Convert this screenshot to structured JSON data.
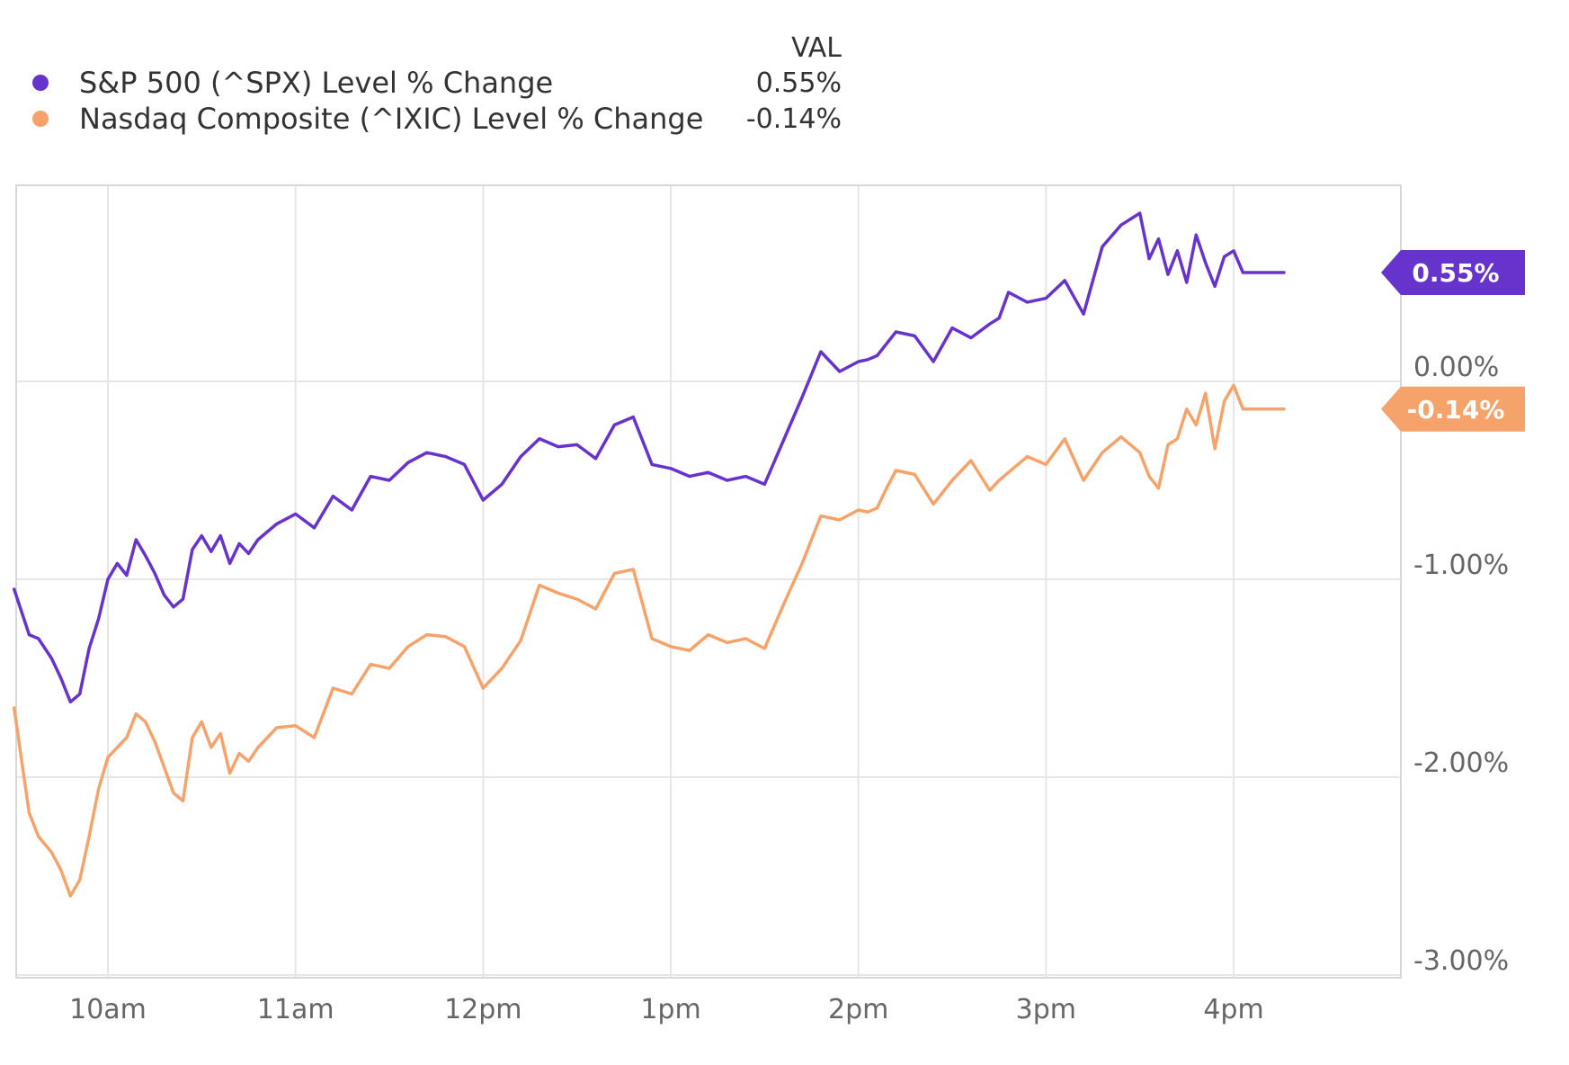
{
  "legend": {
    "header": "VAL",
    "items": [
      {
        "name": "S&P 500 (^SPX) Level % Change",
        "value": "0.55%",
        "color": "#6633cc"
      },
      {
        "name": "Nasdaq Composite (^IXIC) Level % Change",
        "value": "-0.14%",
        "color": "#f5a36b"
      }
    ]
  },
  "chart_data": {
    "type": "line",
    "x_unit": "time of day",
    "x_ticks": [
      {
        "label": "10am",
        "hour": 10
      },
      {
        "label": "11am",
        "hour": 11
      },
      {
        "label": "12pm",
        "hour": 12
      },
      {
        "label": "1pm",
        "hour": 13
      },
      {
        "label": "2pm",
        "hour": 14
      },
      {
        "label": "3pm",
        "hour": 15
      },
      {
        "label": "4pm",
        "hour": 16
      }
    ],
    "xlim": [
      9.5,
      16.9
    ],
    "ylim": [
      -3.0,
      1.0
    ],
    "y_ticks": [
      {
        "value": 0,
        "label": "0.00%"
      },
      {
        "value": -1,
        "label": "-1.00%"
      },
      {
        "value": -2,
        "label": "-2.00%"
      },
      {
        "value": -3,
        "label": "-3.00%"
      }
    ],
    "grid": true,
    "legend_position": "top-left",
    "series": [
      {
        "name": "S&P 500 (^SPX) Level % Change",
        "color": "#6633cc",
        "end_label": "0.55%",
        "end_value": 0.55,
        "hour": [
          9.5,
          9.58,
          9.63,
          9.7,
          9.75,
          9.8,
          9.85,
          9.9,
          9.95,
          10.0,
          10.05,
          10.1,
          10.15,
          10.2,
          10.25,
          10.3,
          10.35,
          10.4,
          10.45,
          10.5,
          10.55,
          10.6,
          10.65,
          10.7,
          10.75,
          10.8,
          10.9,
          11.0,
          11.1,
          11.2,
          11.3,
          11.4,
          11.5,
          11.6,
          11.7,
          11.8,
          11.9,
          12.0,
          12.1,
          12.2,
          12.3,
          12.4,
          12.5,
          12.6,
          12.7,
          12.8,
          12.9,
          13.0,
          13.1,
          13.2,
          13.3,
          13.4,
          13.5,
          13.6,
          13.7,
          13.8,
          13.9,
          14.0,
          14.05,
          14.1,
          14.15,
          14.2,
          14.3,
          14.4,
          14.5,
          14.6,
          14.7,
          14.75,
          14.8,
          14.9,
          15.0,
          15.1,
          15.2,
          15.3,
          15.4,
          15.5,
          15.55,
          15.6,
          15.65,
          15.7,
          15.75,
          15.8,
          15.85,
          15.9,
          15.95,
          16.0,
          16.05,
          16.9
        ],
        "values": [
          -1.05,
          -1.28,
          -1.3,
          -1.4,
          -1.5,
          -1.62,
          -1.58,
          -1.35,
          -1.2,
          -1.0,
          -0.92,
          -0.98,
          -0.8,
          -0.88,
          -0.97,
          -1.08,
          -1.14,
          -1.1,
          -0.85,
          -0.78,
          -0.86,
          -0.78,
          -0.92,
          -0.82,
          -0.87,
          -0.8,
          -0.72,
          -0.67,
          -0.74,
          -0.58,
          -0.65,
          -0.48,
          -0.5,
          -0.41,
          -0.36,
          -0.38,
          -0.42,
          -0.6,
          -0.52,
          -0.38,
          -0.29,
          -0.33,
          -0.32,
          -0.39,
          -0.22,
          -0.18,
          -0.42,
          -0.44,
          -0.48,
          -0.46,
          -0.5,
          -0.48,
          -0.52,
          -0.3,
          -0.08,
          0.15,
          0.05,
          0.1,
          0.11,
          0.13,
          0.19,
          0.25,
          0.23,
          0.1,
          0.27,
          0.22,
          0.29,
          0.32,
          0.45,
          0.4,
          0.42,
          0.51,
          0.34,
          0.68,
          0.79,
          0.85,
          0.62,
          0.72,
          0.54,
          0.66,
          0.5,
          0.74,
          0.6,
          0.48,
          0.63,
          0.66,
          0.55,
          0.55
        ]
      },
      {
        "name": "Nasdaq Composite (^IXIC) Level % Change",
        "color": "#f5a36b",
        "end_label": "-0.14%",
        "end_value": -0.14,
        "hour": [
          9.5,
          9.58,
          9.63,
          9.7,
          9.75,
          9.8,
          9.85,
          9.9,
          9.95,
          10.0,
          10.05,
          10.1,
          10.15,
          10.2,
          10.25,
          10.3,
          10.35,
          10.4,
          10.45,
          10.5,
          10.55,
          10.6,
          10.65,
          10.7,
          10.75,
          10.8,
          10.9,
          11.0,
          11.1,
          11.2,
          11.3,
          11.4,
          11.5,
          11.6,
          11.7,
          11.8,
          11.9,
          12.0,
          12.1,
          12.2,
          12.3,
          12.4,
          12.5,
          12.6,
          12.7,
          12.8,
          12.9,
          13.0,
          13.1,
          13.2,
          13.3,
          13.4,
          13.5,
          13.6,
          13.7,
          13.8,
          13.9,
          14.0,
          14.05,
          14.1,
          14.15,
          14.2,
          14.3,
          14.4,
          14.5,
          14.6,
          14.7,
          14.75,
          14.8,
          14.9,
          15.0,
          15.1,
          15.2,
          15.3,
          15.4,
          15.5,
          15.55,
          15.6,
          15.65,
          15.7,
          15.75,
          15.8,
          15.85,
          15.9,
          15.95,
          16.0,
          16.05,
          16.9
        ],
        "values": [
          -1.65,
          -2.18,
          -2.3,
          -2.38,
          -2.47,
          -2.6,
          -2.52,
          -2.3,
          -2.06,
          -1.9,
          -1.85,
          -1.8,
          -1.68,
          -1.72,
          -1.82,
          -1.95,
          -2.08,
          -2.12,
          -1.8,
          -1.72,
          -1.85,
          -1.78,
          -1.98,
          -1.88,
          -1.92,
          -1.85,
          -1.75,
          -1.74,
          -1.8,
          -1.55,
          -1.58,
          -1.43,
          -1.45,
          -1.34,
          -1.28,
          -1.29,
          -1.34,
          -1.55,
          -1.45,
          -1.31,
          -1.03,
          -1.07,
          -1.1,
          -1.15,
          -0.97,
          -0.95,
          -1.3,
          -1.34,
          -1.36,
          -1.28,
          -1.32,
          -1.3,
          -1.35,
          -1.13,
          -0.92,
          -0.68,
          -0.7,
          -0.65,
          -0.66,
          -0.64,
          -0.54,
          -0.45,
          -0.47,
          -0.62,
          -0.5,
          -0.4,
          -0.55,
          -0.5,
          -0.46,
          -0.38,
          -0.42,
          -0.29,
          -0.5,
          -0.36,
          -0.28,
          -0.36,
          -0.48,
          -0.54,
          -0.32,
          -0.29,
          -0.14,
          -0.22,
          -0.06,
          -0.34,
          -0.1,
          -0.02,
          -0.14,
          -0.14
        ]
      }
    ]
  }
}
